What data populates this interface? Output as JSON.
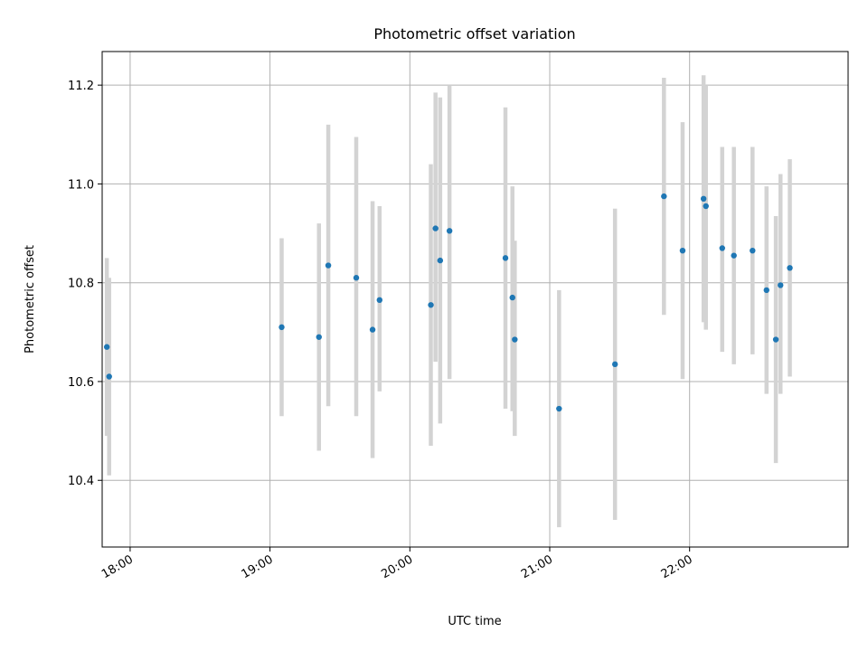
{
  "chart_data": {
    "type": "scatter",
    "title": "Photometric offset variation",
    "xlabel": "UTC time",
    "ylabel": "Photometric offset",
    "xlim": [
      "17:48",
      "23:08"
    ],
    "ylim": [
      10.265,
      11.268
    ],
    "x_ticks": [
      "18:00",
      "19:00",
      "20:00",
      "21:00",
      "22:00"
    ],
    "y_ticks": [
      "10.4",
      "10.6",
      "10.8",
      "11.0",
      "11.2"
    ],
    "grid": true,
    "marker_color": "#1f77b4",
    "errorbar_color": "#d3d3d3",
    "points": [
      {
        "t": "17:50",
        "y": 10.67,
        "lo": 10.49,
        "hi": 10.85
      },
      {
        "t": "17:51",
        "y": 10.61,
        "lo": 10.41,
        "hi": 10.81
      },
      {
        "t": "19:05",
        "y": 10.71,
        "lo": 10.53,
        "hi": 10.89
      },
      {
        "t": "19:21",
        "y": 10.69,
        "lo": 10.46,
        "hi": 10.92
      },
      {
        "t": "19:25",
        "y": 10.835,
        "lo": 10.55,
        "hi": 11.12
      },
      {
        "t": "19:37",
        "y": 10.81,
        "lo": 10.53,
        "hi": 11.095
      },
      {
        "t": "19:44",
        "y": 10.705,
        "lo": 10.445,
        "hi": 10.965
      },
      {
        "t": "19:47",
        "y": 10.765,
        "lo": 10.58,
        "hi": 10.955
      },
      {
        "t": "20:09",
        "y": 10.755,
        "lo": 10.47,
        "hi": 11.04
      },
      {
        "t": "20:11",
        "y": 10.91,
        "lo": 10.64,
        "hi": 11.185
      },
      {
        "t": "20:13",
        "y": 10.845,
        "lo": 10.515,
        "hi": 11.175
      },
      {
        "t": "20:17",
        "y": 10.905,
        "lo": 10.605,
        "hi": 11.2
      },
      {
        "t": "20:41",
        "y": 10.85,
        "lo": 10.545,
        "hi": 11.155
      },
      {
        "t": "20:44",
        "y": 10.77,
        "lo": 10.54,
        "hi": 10.995
      },
      {
        "t": "20:45",
        "y": 10.685,
        "lo": 10.49,
        "hi": 10.885
      },
      {
        "t": "21:04",
        "y": 10.545,
        "lo": 10.305,
        "hi": 10.785
      },
      {
        "t": "21:28",
        "y": 10.635,
        "lo": 10.32,
        "hi": 10.95
      },
      {
        "t": "21:49",
        "y": 10.975,
        "lo": 10.735,
        "hi": 11.215
      },
      {
        "t": "21:57",
        "y": 10.865,
        "lo": 10.605,
        "hi": 11.125
      },
      {
        "t": "22:06",
        "y": 10.97,
        "lo": 10.72,
        "hi": 11.22
      },
      {
        "t": "22:07",
        "y": 10.955,
        "lo": 10.705,
        "hi": 11.2
      },
      {
        "t": "22:14",
        "y": 10.87,
        "lo": 10.66,
        "hi": 11.075
      },
      {
        "t": "22:19",
        "y": 10.855,
        "lo": 10.635,
        "hi": 11.075
      },
      {
        "t": "22:27",
        "y": 10.865,
        "lo": 10.655,
        "hi": 11.075
      },
      {
        "t": "22:33",
        "y": 10.785,
        "lo": 10.575,
        "hi": 10.995
      },
      {
        "t": "22:37",
        "y": 10.685,
        "lo": 10.435,
        "hi": 10.935
      },
      {
        "t": "22:39",
        "y": 10.795,
        "lo": 10.575,
        "hi": 11.02
      },
      {
        "t": "22:43",
        "y": 10.83,
        "lo": 10.61,
        "hi": 11.05
      }
    ]
  }
}
